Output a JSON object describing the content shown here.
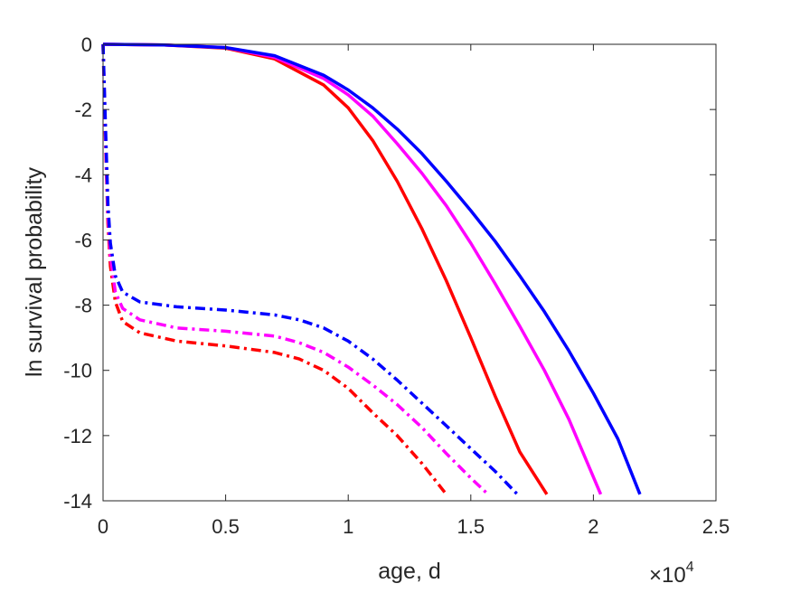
{
  "chart_data": {
    "type": "line",
    "xlabel": "age, d",
    "ylabel": "ln survival probability",
    "x_exponent": {
      "base": "10",
      "power": "4",
      "symbol": "×"
    },
    "xlim": [
      0,
      25000
    ],
    "ylim": [
      -14,
      0
    ],
    "xticks": [
      0,
      5000,
      10000,
      15000,
      20000,
      25000
    ],
    "xtick_labels": [
      "0",
      "0.5",
      "1",
      "1.5",
      "2",
      "2.5"
    ],
    "yticks": [
      0,
      -2,
      -4,
      -6,
      -8,
      -10,
      -12,
      -14
    ],
    "ytick_labels": [
      "0",
      "-2",
      "-4",
      "-6",
      "-8",
      "-10",
      "-12",
      "-14"
    ],
    "grid": false,
    "series": [
      {
        "color": "#ff0000",
        "style": "solid",
        "points": [
          [
            0,
            0
          ],
          [
            2500,
            -0.02
          ],
          [
            5000,
            -0.12
          ],
          [
            7000,
            -0.45
          ],
          [
            9000,
            -1.25
          ],
          [
            10000,
            -1.95
          ],
          [
            11000,
            -2.95
          ],
          [
            12000,
            -4.2
          ],
          [
            13000,
            -5.65
          ],
          [
            14000,
            -7.25
          ],
          [
            15000,
            -9.0
          ],
          [
            16000,
            -10.8
          ],
          [
            17000,
            -12.5
          ],
          [
            18100,
            -13.8
          ]
        ]
      },
      {
        "color": "#ff00ff",
        "style": "solid",
        "points": [
          [
            0,
            0
          ],
          [
            2500,
            -0.02
          ],
          [
            5000,
            -0.1
          ],
          [
            7000,
            -0.4
          ],
          [
            9000,
            -1.05
          ],
          [
            10000,
            -1.55
          ],
          [
            11000,
            -2.2
          ],
          [
            12000,
            -3.05
          ],
          [
            13000,
            -3.95
          ],
          [
            14000,
            -4.95
          ],
          [
            15000,
            -6.1
          ],
          [
            16000,
            -7.35
          ],
          [
            17000,
            -8.65
          ],
          [
            18000,
            -10.0
          ],
          [
            19000,
            -11.5
          ],
          [
            20300,
            -13.8
          ]
        ]
      },
      {
        "color": "#0000ff",
        "style": "solid",
        "points": [
          [
            0,
            0
          ],
          [
            2500,
            -0.02
          ],
          [
            5000,
            -0.1
          ],
          [
            7000,
            -0.35
          ],
          [
            9000,
            -0.95
          ],
          [
            10000,
            -1.4
          ],
          [
            11000,
            -1.95
          ],
          [
            12000,
            -2.6
          ],
          [
            13000,
            -3.35
          ],
          [
            14000,
            -4.2
          ],
          [
            15000,
            -5.1
          ],
          [
            16000,
            -6.05
          ],
          [
            17000,
            -7.1
          ],
          [
            18000,
            -8.2
          ],
          [
            19000,
            -9.4
          ],
          [
            20000,
            -10.7
          ],
          [
            21000,
            -12.1
          ],
          [
            21900,
            -13.8
          ]
        ]
      },
      {
        "color": "#ff0000",
        "style": "dashdot",
        "points": [
          [
            0,
            0
          ],
          [
            100,
            -3.0
          ],
          [
            200,
            -5.5
          ],
          [
            300,
            -6.8
          ],
          [
            500,
            -7.9
          ],
          [
            800,
            -8.5
          ],
          [
            1500,
            -8.85
          ],
          [
            3000,
            -9.1
          ],
          [
            5000,
            -9.25
          ],
          [
            7000,
            -9.45
          ],
          [
            8000,
            -9.65
          ],
          [
            9000,
            -10.0
          ],
          [
            10000,
            -10.55
          ],
          [
            11000,
            -11.3
          ],
          [
            12000,
            -12.0
          ],
          [
            13000,
            -12.85
          ],
          [
            14000,
            -13.8
          ]
        ]
      },
      {
        "color": "#ff00ff",
        "style": "dashdot",
        "points": [
          [
            0,
            0
          ],
          [
            100,
            -2.8
          ],
          [
            200,
            -5.2
          ],
          [
            300,
            -6.5
          ],
          [
            500,
            -7.6
          ],
          [
            800,
            -8.1
          ],
          [
            1500,
            -8.45
          ],
          [
            3000,
            -8.7
          ],
          [
            5000,
            -8.8
          ],
          [
            7000,
            -8.95
          ],
          [
            8000,
            -9.15
          ],
          [
            9000,
            -9.45
          ],
          [
            10000,
            -9.9
          ],
          [
            11000,
            -10.45
          ],
          [
            12000,
            -11.05
          ],
          [
            13000,
            -11.75
          ],
          [
            14000,
            -12.55
          ],
          [
            15000,
            -13.3
          ],
          [
            15700,
            -13.8
          ]
        ]
      },
      {
        "color": "#0000ff",
        "style": "dashdot",
        "points": [
          [
            0,
            0
          ],
          [
            100,
            -2.5
          ],
          [
            200,
            -4.9
          ],
          [
            300,
            -6.1
          ],
          [
            500,
            -7.1
          ],
          [
            800,
            -7.6
          ],
          [
            1500,
            -7.9
          ],
          [
            3000,
            -8.05
          ],
          [
            5000,
            -8.15
          ],
          [
            7000,
            -8.3
          ],
          [
            8000,
            -8.45
          ],
          [
            9000,
            -8.7
          ],
          [
            10000,
            -9.1
          ],
          [
            11000,
            -9.65
          ],
          [
            12000,
            -10.3
          ],
          [
            13000,
            -11.0
          ],
          [
            14000,
            -11.7
          ],
          [
            15000,
            -12.4
          ],
          [
            16000,
            -13.1
          ],
          [
            16900,
            -13.8
          ]
        ]
      }
    ]
  }
}
